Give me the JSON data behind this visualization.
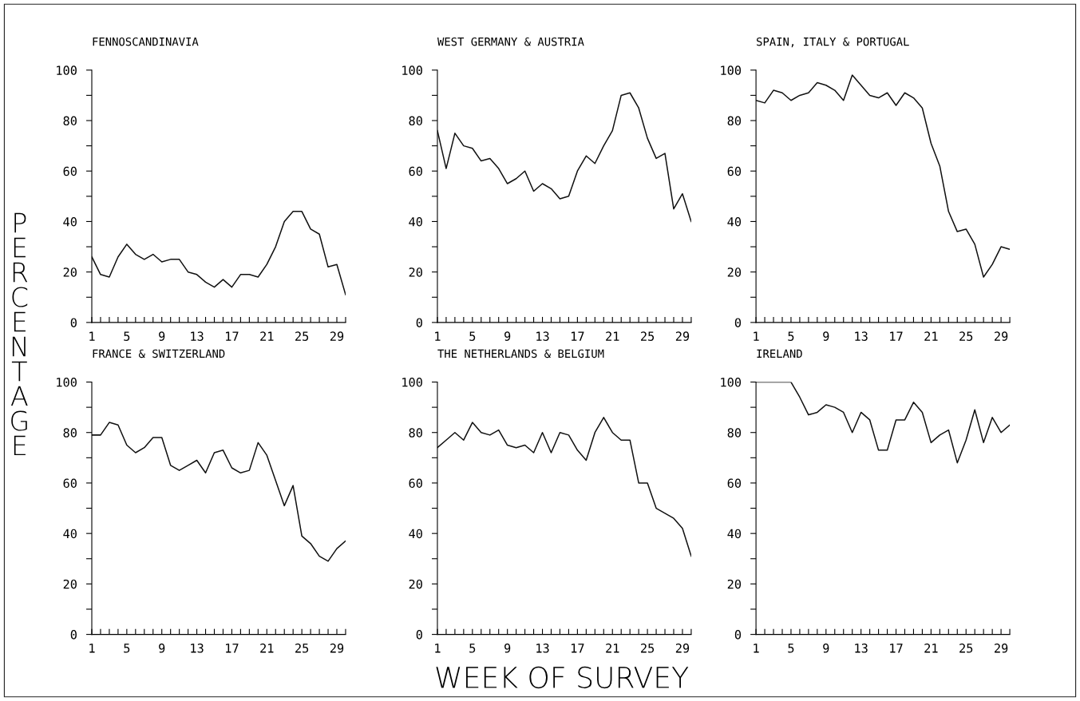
{
  "chart_data": [
    {
      "type": "line",
      "title": "FENNOSCANDINAVIA",
      "ylabel": "PERCENTAGE",
      "x": [
        1,
        2,
        3,
        4,
        5,
        6,
        7,
        8,
        9,
        10,
        11,
        12,
        13,
        14,
        15,
        16,
        17,
        18,
        19,
        20,
        21,
        22,
        23,
        24,
        25,
        26,
        27,
        28,
        29,
        30
      ],
      "series": [
        {
          "color": "#111111",
          "values": [
            26,
            19,
            18,
            26,
            31,
            27,
            25,
            27,
            24,
            25,
            25,
            20,
            19,
            16,
            14,
            17,
            14,
            19,
            19,
            18,
            23,
            30,
            40,
            44,
            44,
            37,
            35,
            22,
            23,
            11
          ]
        }
      ],
      "xlim": [
        1,
        30
      ],
      "ylim": [
        0,
        100
      ],
      "xticks": [
        1,
        {
          "value": 2,
          "label": null
        },
        {
          "value": 3,
          "label": null
        },
        {
          "value": 4,
          "label": null
        },
        5,
        {
          "value": 6,
          "label": null
        },
        {
          "value": 7,
          "label": null
        },
        {
          "value": 8,
          "label": null
        },
        9,
        {
          "value": 10,
          "label": null
        },
        {
          "value": 11,
          "label": null
        },
        {
          "value": 12,
          "label": null
        },
        13,
        {
          "value": 14,
          "label": null
        },
        {
          "value": 15,
          "label": null
        },
        {
          "value": 16,
          "label": null
        },
        17,
        {
          "value": 18,
          "label": null
        },
        {
          "value": 19,
          "label": null
        },
        {
          "value": 20,
          "label": null
        },
        21,
        {
          "value": 22,
          "label": null
        },
        {
          "value": 23,
          "label": null
        },
        {
          "value": 24,
          "label": null
        },
        25,
        {
          "value": 26,
          "label": null
        },
        {
          "value": 27,
          "label": null
        },
        {
          "value": 28,
          "label": null
        },
        29,
        {
          "value": 30,
          "label": null
        }
      ],
      "yticks": [
        0,
        {
          "value": 10,
          "label": null
        },
        20,
        {
          "value": 30,
          "label": null
        },
        40,
        {
          "value": 50,
          "label": null
        },
        60,
        {
          "value": 70,
          "label": null
        },
        80,
        {
          "value": 90,
          "label": null
        },
        100
      ],
      "grid": false,
      "legend": false,
      "marker": "none",
      "line_style": "solid"
    },
    {
      "type": "line",
      "title": "WEST GERMANY & AUSTRIA",
      "x": [
        1,
        2,
        3,
        4,
        5,
        6,
        7,
        8,
        9,
        10,
        11,
        12,
        13,
        14,
        15,
        16,
        17,
        18,
        19,
        20,
        21,
        22,
        23,
        24,
        25,
        26,
        27,
        28,
        29,
        30
      ],
      "series": [
        {
          "color": "#111111",
          "values": [
            76,
            61,
            75,
            70,
            69,
            64,
            65,
            61,
            55,
            57,
            60,
            52,
            55,
            53,
            49,
            50,
            60,
            66,
            63,
            70,
            76,
            90,
            91,
            85,
            73,
            65,
            67,
            45,
            51,
            40
          ]
        }
      ],
      "xlim": [
        1,
        30
      ],
      "ylim": [
        0,
        100
      ],
      "xticks": [
        1,
        {
          "value": 2,
          "label": null
        },
        {
          "value": 3,
          "label": null
        },
        {
          "value": 4,
          "label": null
        },
        5,
        {
          "value": 6,
          "label": null
        },
        {
          "value": 7,
          "label": null
        },
        {
          "value": 8,
          "label": null
        },
        9,
        {
          "value": 10,
          "label": null
        },
        {
          "value": 11,
          "label": null
        },
        {
          "value": 12,
          "label": null
        },
        13,
        {
          "value": 14,
          "label": null
        },
        {
          "value": 15,
          "label": null
        },
        {
          "value": 16,
          "label": null
        },
        17,
        {
          "value": 18,
          "label": null
        },
        {
          "value": 19,
          "label": null
        },
        {
          "value": 20,
          "label": null
        },
        21,
        {
          "value": 22,
          "label": null
        },
        {
          "value": 23,
          "label": null
        },
        {
          "value": 24,
          "label": null
        },
        25,
        {
          "value": 26,
          "label": null
        },
        {
          "value": 27,
          "label": null
        },
        {
          "value": 28,
          "label": null
        },
        29,
        {
          "value": 30,
          "label": null
        }
      ],
      "yticks": [
        0,
        {
          "value": 10,
          "label": null
        },
        20,
        {
          "value": 30,
          "label": null
        },
        40,
        {
          "value": 50,
          "label": null
        },
        60,
        {
          "value": 70,
          "label": null
        },
        80,
        {
          "value": 90,
          "label": null
        },
        100
      ],
      "grid": false,
      "legend": false,
      "marker": "none",
      "line_style": "solid"
    },
    {
      "type": "line",
      "title": "SPAIN, ITALY & PORTUGAL",
      "x": [
        1,
        2,
        3,
        4,
        5,
        6,
        7,
        8,
        9,
        10,
        11,
        12,
        13,
        14,
        15,
        16,
        17,
        18,
        19,
        20,
        21,
        22,
        23,
        24,
        25,
        26,
        27,
        28,
        29,
        30
      ],
      "series": [
        {
          "color": "#111111",
          "values": [
            88,
            87,
            92,
            91,
            88,
            90,
            91,
            95,
            94,
            92,
            88,
            98,
            94,
            90,
            89,
            91,
            86,
            91,
            89,
            85,
            71,
            62,
            44,
            36,
            37,
            31,
            18,
            23,
            30,
            29
          ]
        }
      ],
      "xlim": [
        1,
        30
      ],
      "ylim": [
        0,
        100
      ],
      "xticks": [
        1,
        {
          "value": 2,
          "label": null
        },
        {
          "value": 3,
          "label": null
        },
        {
          "value": 4,
          "label": null
        },
        5,
        {
          "value": 6,
          "label": null
        },
        {
          "value": 7,
          "label": null
        },
        {
          "value": 8,
          "label": null
        },
        9,
        {
          "value": 10,
          "label": null
        },
        {
          "value": 11,
          "label": null
        },
        {
          "value": 12,
          "label": null
        },
        13,
        {
          "value": 14,
          "label": null
        },
        {
          "value": 15,
          "label": null
        },
        {
          "value": 16,
          "label": null
        },
        17,
        {
          "value": 18,
          "label": null
        },
        {
          "value": 19,
          "label": null
        },
        {
          "value": 20,
          "label": null
        },
        21,
        {
          "value": 22,
          "label": null
        },
        {
          "value": 23,
          "label": null
        },
        {
          "value": 24,
          "label": null
        },
        25,
        {
          "value": 26,
          "label": null
        },
        {
          "value": 27,
          "label": null
        },
        {
          "value": 28,
          "label": null
        },
        29,
        {
          "value": 30,
          "label": null
        }
      ],
      "yticks": [
        0,
        {
          "value": 10,
          "label": null
        },
        20,
        {
          "value": 30,
          "label": null
        },
        40,
        {
          "value": 50,
          "label": null
        },
        60,
        {
          "value": 70,
          "label": null
        },
        80,
        {
          "value": 90,
          "label": null
        },
        100
      ],
      "grid": false,
      "legend": false,
      "marker": "none",
      "line_style": "solid"
    },
    {
      "type": "line",
      "title": "FRANCE & SWITZERLAND",
      "x": [
        1,
        2,
        3,
        4,
        5,
        6,
        7,
        8,
        9,
        10,
        11,
        12,
        13,
        14,
        15,
        16,
        17,
        18,
        19,
        20,
        21,
        22,
        23,
        24,
        25,
        26,
        27,
        28,
        29,
        30
      ],
      "series": [
        {
          "color": "#111111",
          "values": [
            79,
            79,
            84,
            83,
            75,
            72,
            74,
            78,
            78,
            67,
            65,
            67,
            69,
            64,
            72,
            73,
            66,
            64,
            65,
            76,
            71,
            61,
            51,
            59,
            39,
            36,
            31,
            29,
            34,
            37
          ]
        }
      ],
      "xlim": [
        1,
        30
      ],
      "ylim": [
        0,
        100
      ],
      "xticks": [
        1,
        {
          "value": 2,
          "label": null
        },
        {
          "value": 3,
          "label": null
        },
        {
          "value": 4,
          "label": null
        },
        5,
        {
          "value": 6,
          "label": null
        },
        {
          "value": 7,
          "label": null
        },
        {
          "value": 8,
          "label": null
        },
        9,
        {
          "value": 10,
          "label": null
        },
        {
          "value": 11,
          "label": null
        },
        {
          "value": 12,
          "label": null
        },
        13,
        {
          "value": 14,
          "label": null
        },
        {
          "value": 15,
          "label": null
        },
        {
          "value": 16,
          "label": null
        },
        17,
        {
          "value": 18,
          "label": null
        },
        {
          "value": 19,
          "label": null
        },
        {
          "value": 20,
          "label": null
        },
        21,
        {
          "value": 22,
          "label": null
        },
        {
          "value": 23,
          "label": null
        },
        {
          "value": 24,
          "label": null
        },
        25,
        {
          "value": 26,
          "label": null
        },
        {
          "value": 27,
          "label": null
        },
        {
          "value": 28,
          "label": null
        },
        29,
        {
          "value": 30,
          "label": null
        }
      ],
      "yticks": [
        0,
        {
          "value": 10,
          "label": null
        },
        20,
        {
          "value": 30,
          "label": null
        },
        40,
        {
          "value": 50,
          "label": null
        },
        60,
        {
          "value": 70,
          "label": null
        },
        80,
        {
          "value": 90,
          "label": null
        },
        100
      ],
      "grid": false,
      "legend": false,
      "marker": "none",
      "line_style": "solid"
    },
    {
      "type": "line",
      "title": "THE NETHERLANDS & BELGIUM",
      "xlabel": "WEEK OF SURVEY",
      "x": [
        1,
        2,
        3,
        4,
        5,
        6,
        7,
        8,
        9,
        10,
        11,
        12,
        13,
        14,
        15,
        16,
        17,
        18,
        19,
        20,
        21,
        22,
        23,
        24,
        25,
        26,
        27,
        28,
        29,
        30
      ],
      "series": [
        {
          "color": "#111111",
          "values": [
            74,
            77,
            80,
            77,
            84,
            80,
            79,
            81,
            75,
            74,
            75,
            72,
            80,
            72,
            80,
            79,
            73,
            69,
            80,
            86,
            80,
            77,
            77,
            60,
            60,
            50,
            48,
            46,
            42,
            31
          ]
        }
      ],
      "xlim": [
        1,
        30
      ],
      "ylim": [
        0,
        100
      ],
      "xticks": [
        1,
        {
          "value": 2,
          "label": null
        },
        {
          "value": 3,
          "label": null
        },
        {
          "value": 4,
          "label": null
        },
        5,
        {
          "value": 6,
          "label": null
        },
        {
          "value": 7,
          "label": null
        },
        {
          "value": 8,
          "label": null
        },
        9,
        {
          "value": 10,
          "label": null
        },
        {
          "value": 11,
          "label": null
        },
        {
          "value": 12,
          "label": null
        },
        13,
        {
          "value": 14,
          "label": null
        },
        {
          "value": 15,
          "label": null
        },
        {
          "value": 16,
          "label": null
        },
        17,
        {
          "value": 18,
          "label": null
        },
        {
          "value": 19,
          "label": null
        },
        {
          "value": 20,
          "label": null
        },
        21,
        {
          "value": 22,
          "label": null
        },
        {
          "value": 23,
          "label": null
        },
        {
          "value": 24,
          "label": null
        },
        25,
        {
          "value": 26,
          "label": null
        },
        {
          "value": 27,
          "label": null
        },
        {
          "value": 28,
          "label": null
        },
        29,
        {
          "value": 30,
          "label": null
        }
      ],
      "yticks": [
        0,
        {
          "value": 10,
          "label": null
        },
        20,
        {
          "value": 30,
          "label": null
        },
        40,
        {
          "value": 50,
          "label": null
        },
        60,
        {
          "value": 70,
          "label": null
        },
        80,
        {
          "value": 90,
          "label": null
        },
        100
      ],
      "grid": false,
      "legend": false,
      "marker": "none",
      "line_style": "solid"
    },
    {
      "type": "line",
      "title": "IRELAND",
      "x": [
        1,
        2,
        3,
        4,
        5,
        6,
        7,
        8,
        9,
        10,
        11,
        12,
        13,
        14,
        15,
        16,
        17,
        18,
        19,
        20,
        21,
        22,
        23,
        24,
        25,
        26,
        27,
        28,
        29,
        30
      ],
      "series": [
        {
          "color": "#111111",
          "values": [
            100,
            100,
            100,
            100,
            100,
            94,
            87,
            88,
            91,
            90,
            88,
            80,
            88,
            85,
            73,
            73,
            85,
            85,
            92,
            88,
            76,
            79,
            81,
            68,
            77,
            89,
            76,
            86,
            80,
            83
          ]
        }
      ],
      "xlim": [
        1,
        30
      ],
      "ylim": [
        0,
        100
      ],
      "xticks": [
        1,
        {
          "value": 2,
          "label": null
        },
        {
          "value": 3,
          "label": null
        },
        {
          "value": 4,
          "label": null
        },
        5,
        {
          "value": 6,
          "label": null
        },
        {
          "value": 7,
          "label": null
        },
        {
          "value": 8,
          "label": null
        },
        9,
        {
          "value": 10,
          "label": null
        },
        {
          "value": 11,
          "label": null
        },
        {
          "value": 12,
          "label": null
        },
        13,
        {
          "value": 14,
          "label": null
        },
        {
          "value": 15,
          "label": null
        },
        {
          "value": 16,
          "label": null
        },
        17,
        {
          "value": 18,
          "label": null
        },
        {
          "value": 19,
          "label": null
        },
        {
          "value": 20,
          "label": null
        },
        21,
        {
          "value": 22,
          "label": null
        },
        {
          "value": 23,
          "label": null
        },
        {
          "value": 24,
          "label": null
        },
        25,
        {
          "value": 26,
          "label": null
        },
        {
          "value": 27,
          "label": null
        },
        {
          "value": 28,
          "label": null
        },
        29,
        {
          "value": 30,
          "label": null
        }
      ],
      "yticks": [
        0,
        {
          "value": 10,
          "label": null
        },
        20,
        {
          "value": 30,
          "label": null
        },
        40,
        {
          "value": 50,
          "label": null
        },
        60,
        {
          "value": 70,
          "label": null
        },
        80,
        {
          "value": 90,
          "label": null
        },
        100
      ],
      "grid": false,
      "legend": false,
      "marker": "none",
      "line_style": "solid"
    }
  ]
}
